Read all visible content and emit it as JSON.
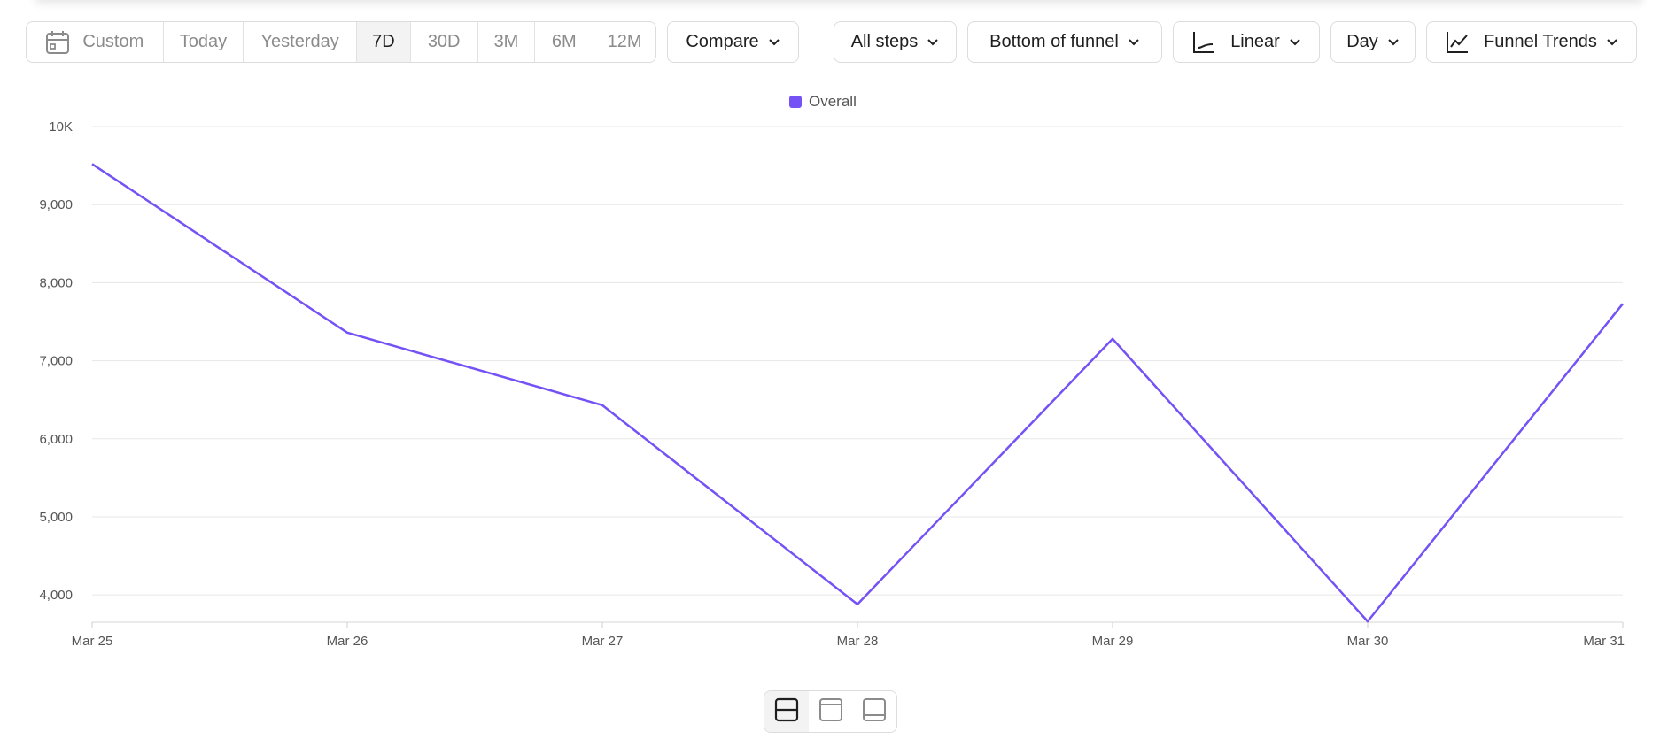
{
  "toolbar": {
    "date_range": {
      "custom_label": "Custom",
      "options": [
        {
          "label": "Today",
          "active": false
        },
        {
          "label": "Yesterday",
          "active": false
        },
        {
          "label": "7D",
          "active": true
        },
        {
          "label": "30D",
          "active": false
        },
        {
          "label": "3M",
          "active": false
        },
        {
          "label": "6M",
          "active": false
        },
        {
          "label": "12M",
          "active": false
        }
      ]
    },
    "compare_label": "Compare",
    "steps_label": "All steps",
    "funnel_position_label": "Bottom of funnel",
    "scale_label": "Linear",
    "interval_label": "Day",
    "view_label": "Funnel Trends",
    "icons": {
      "calendar": "calendar-icon",
      "chevron": "chevron-down-icon",
      "axis": "axis-scale-icon",
      "trend": "line-chart-icon"
    }
  },
  "colors": {
    "accent": "#7452f5",
    "gridline": "#e7e7e7",
    "axis_text": "#555555"
  },
  "chart_data": {
    "type": "line",
    "categories": [
      "Mar 25",
      "Mar 26",
      "Mar 27",
      "Mar 28",
      "Mar 29",
      "Mar 30",
      "Mar 31"
    ],
    "series": [
      {
        "name": "Overall",
        "values": [
          9520,
          7360,
          6430,
          3880,
          7280,
          3660,
          7730
        ]
      }
    ],
    "y_ticks": [
      {
        "value": 4000,
        "label": "4,000"
      },
      {
        "value": 5000,
        "label": "5,000"
      },
      {
        "value": 6000,
        "label": "6,000"
      },
      {
        "value": 7000,
        "label": "7,000"
      },
      {
        "value": 8000,
        "label": "8,000"
      },
      {
        "value": 9000,
        "label": "9,000"
      },
      {
        "value": 10000,
        "label": "10K"
      }
    ],
    "ylim": [
      3650,
      10000
    ],
    "grid": true,
    "legend_position": "top-center"
  },
  "layout_toggle": {
    "options": [
      {
        "icon": "split-layout-icon",
        "active": true
      },
      {
        "icon": "top-panel-layout-icon",
        "active": false
      },
      {
        "icon": "bottom-panel-layout-icon",
        "active": false
      }
    ]
  }
}
